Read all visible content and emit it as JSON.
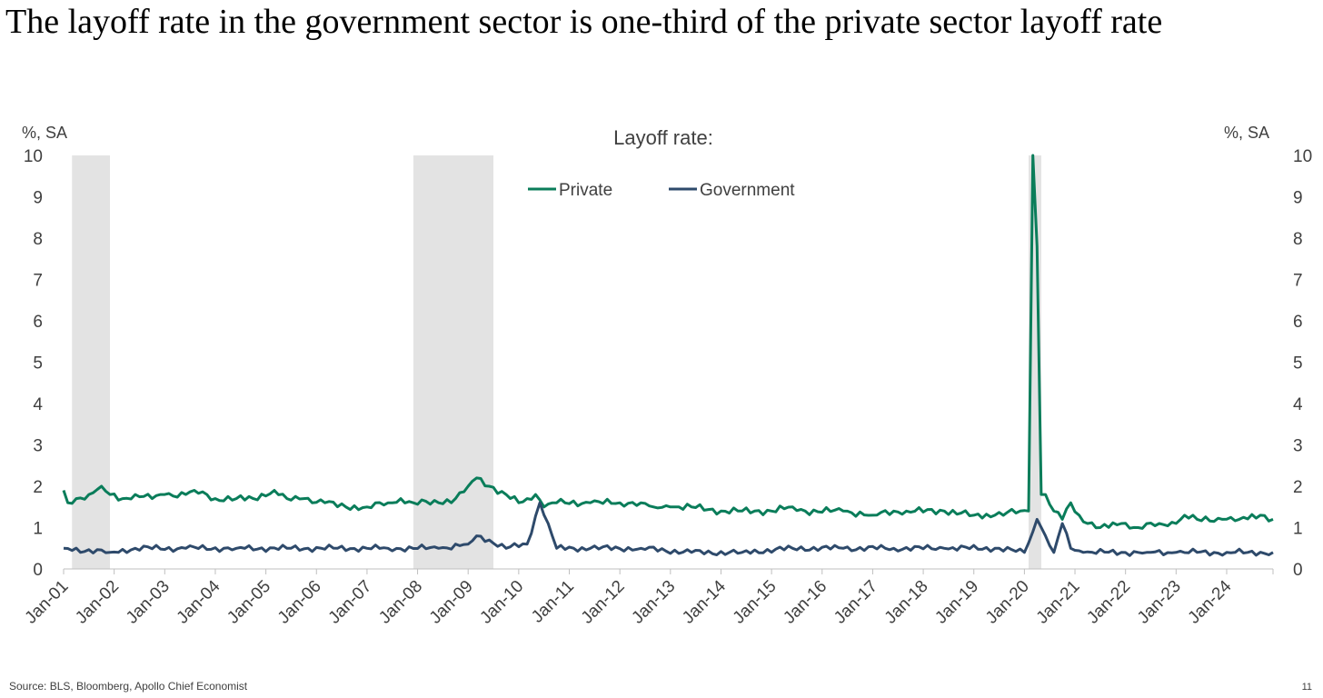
{
  "chart_data": {
    "type": "line",
    "title": "The layoff rate in the government sector is one-third of the private sector layoff rate",
    "chart_title": "Layoff rate:",
    "ylabel_left": "%, SA",
    "ylabel_right": "%, SA",
    "ylim": [
      0,
      10
    ],
    "yticks": [
      "0",
      "1",
      "2",
      "3",
      "4",
      "5",
      "6",
      "7",
      "8",
      "9",
      "10"
    ],
    "x_start": "2001-01",
    "x_end": "2024-12",
    "xticks": [
      "Jan-01",
      "Jan-02",
      "Jan-03",
      "Jan-04",
      "Jan-05",
      "Jan-06",
      "Jan-07",
      "Jan-08",
      "Jan-09",
      "Jan-10",
      "Jan-11",
      "Jan-12",
      "Jan-13",
      "Jan-14",
      "Jan-15",
      "Jan-16",
      "Jan-17",
      "Jan-18",
      "Jan-19",
      "Jan-20",
      "Jan-21",
      "Jan-22",
      "Jan-23",
      "Jan-24"
    ],
    "recessions": [
      {
        "start": "2001-03",
        "end": "2001-11"
      },
      {
        "start": "2007-12",
        "end": "2009-06"
      },
      {
        "start": "2020-02",
        "end": "2020-04"
      }
    ],
    "legend_position": "top-center",
    "series": [
      {
        "name": "Private",
        "color": "#0a7d5a",
        "anchors": [
          [
            "2001-01",
            1.9
          ],
          [
            "2001-02",
            1.6
          ],
          [
            "2001-04",
            1.7
          ],
          [
            "2001-07",
            1.8
          ],
          [
            "2001-10",
            2.0
          ],
          [
            "2001-12",
            1.8
          ],
          [
            "2002-03",
            1.7
          ],
          [
            "2002-06",
            1.8
          ],
          [
            "2002-10",
            1.7
          ],
          [
            "2003-01",
            1.8
          ],
          [
            "2003-06",
            1.8
          ],
          [
            "2003-08",
            1.9
          ],
          [
            "2004-01",
            1.7
          ],
          [
            "2004-06",
            1.7
          ],
          [
            "2004-10",
            1.7
          ],
          [
            "2005-03",
            1.9
          ],
          [
            "2005-06",
            1.7
          ],
          [
            "2005-10",
            1.7
          ],
          [
            "2006-03",
            1.6
          ],
          [
            "2006-08",
            1.5
          ],
          [
            "2007-01",
            1.5
          ],
          [
            "2007-06",
            1.6
          ],
          [
            "2007-09",
            1.7
          ],
          [
            "2007-12",
            1.6
          ],
          [
            "2008-06",
            1.6
          ],
          [
            "2008-10",
            1.7
          ],
          [
            "2009-01",
            2.0
          ],
          [
            "2009-03",
            2.2
          ],
          [
            "2009-06",
            2.0
          ],
          [
            "2009-10",
            1.8
          ],
          [
            "2010-01",
            1.6
          ],
          [
            "2010-03",
            1.7
          ],
          [
            "2010-05",
            1.8
          ],
          [
            "2010-07",
            1.5
          ],
          [
            "2010-10",
            1.6
          ],
          [
            "2011-06",
            1.6
          ],
          [
            "2012-01",
            1.6
          ],
          [
            "2012-06",
            1.6
          ],
          [
            "2012-09",
            1.5
          ],
          [
            "2013-01",
            1.5
          ],
          [
            "2013-06",
            1.5
          ],
          [
            "2014-01",
            1.4
          ],
          [
            "2014-06",
            1.4
          ],
          [
            "2015-01",
            1.4
          ],
          [
            "2015-06",
            1.5
          ],
          [
            "2015-09",
            1.4
          ],
          [
            "2016-06",
            1.4
          ],
          [
            "2017-01",
            1.3
          ],
          [
            "2017-06",
            1.4
          ],
          [
            "2017-09",
            1.4
          ],
          [
            "2018-06",
            1.4
          ],
          [
            "2019-01",
            1.3
          ],
          [
            "2019-06",
            1.3
          ],
          [
            "2019-12",
            1.4
          ],
          [
            "2020-02",
            1.4
          ],
          [
            "2020-03",
            10.3
          ],
          [
            "2020-04",
            7.8
          ],
          [
            "2020-05",
            1.8
          ],
          [
            "2020-06",
            1.8
          ],
          [
            "2020-08",
            1.4
          ],
          [
            "2020-10",
            1.2
          ],
          [
            "2020-12",
            1.6
          ],
          [
            "2021-02",
            1.3
          ],
          [
            "2021-04",
            1.1
          ],
          [
            "2021-07",
            1.0
          ],
          [
            "2021-12",
            1.1
          ],
          [
            "2022-04",
            1.0
          ],
          [
            "2022-09",
            1.1
          ],
          [
            "2023-01",
            1.1
          ],
          [
            "2023-03",
            1.3
          ],
          [
            "2023-06",
            1.2
          ],
          [
            "2023-12",
            1.2
          ],
          [
            "2024-04",
            1.2
          ],
          [
            "2024-09",
            1.3
          ],
          [
            "2024-12",
            1.2
          ]
        ]
      },
      {
        "name": "Government",
        "color": "#2e4a6b",
        "anchors": [
          [
            "2001-01",
            0.5
          ],
          [
            "2001-12",
            0.4
          ],
          [
            "2002-06",
            0.5
          ],
          [
            "2003-06",
            0.5
          ],
          [
            "2004-06",
            0.5
          ],
          [
            "2005-06",
            0.5
          ],
          [
            "2006-06",
            0.5
          ],
          [
            "2007-06",
            0.5
          ],
          [
            "2008-06",
            0.5
          ],
          [
            "2009-01",
            0.6
          ],
          [
            "2009-03",
            0.8
          ],
          [
            "2009-06",
            0.7
          ],
          [
            "2009-10",
            0.5
          ],
          [
            "2010-03",
            0.6
          ],
          [
            "2010-06",
            1.6
          ],
          [
            "2010-08",
            1.1
          ],
          [
            "2010-10",
            0.5
          ],
          [
            "2011-06",
            0.5
          ],
          [
            "2012-06",
            0.5
          ],
          [
            "2013-06",
            0.4
          ],
          [
            "2014-06",
            0.4
          ],
          [
            "2015-06",
            0.5
          ],
          [
            "2016-06",
            0.5
          ],
          [
            "2017-06",
            0.5
          ],
          [
            "2018-06",
            0.5
          ],
          [
            "2019-06",
            0.5
          ],
          [
            "2020-01",
            0.4
          ],
          [
            "2020-03",
            0.9
          ],
          [
            "2020-04",
            1.2
          ],
          [
            "2020-06",
            0.8
          ],
          [
            "2020-08",
            0.4
          ],
          [
            "2020-10",
            1.1
          ],
          [
            "2020-12",
            0.5
          ],
          [
            "2021-03",
            0.4
          ],
          [
            "2021-12",
            0.4
          ],
          [
            "2022-06",
            0.4
          ],
          [
            "2023-01",
            0.4
          ],
          [
            "2023-06",
            0.4
          ],
          [
            "2024-01",
            0.4
          ],
          [
            "2024-06",
            0.4
          ],
          [
            "2024-12",
            0.4
          ]
        ]
      }
    ]
  },
  "footer": {
    "source": "Source: BLS, Bloomberg, Apollo Chief Economist",
    "page_number": "11"
  }
}
